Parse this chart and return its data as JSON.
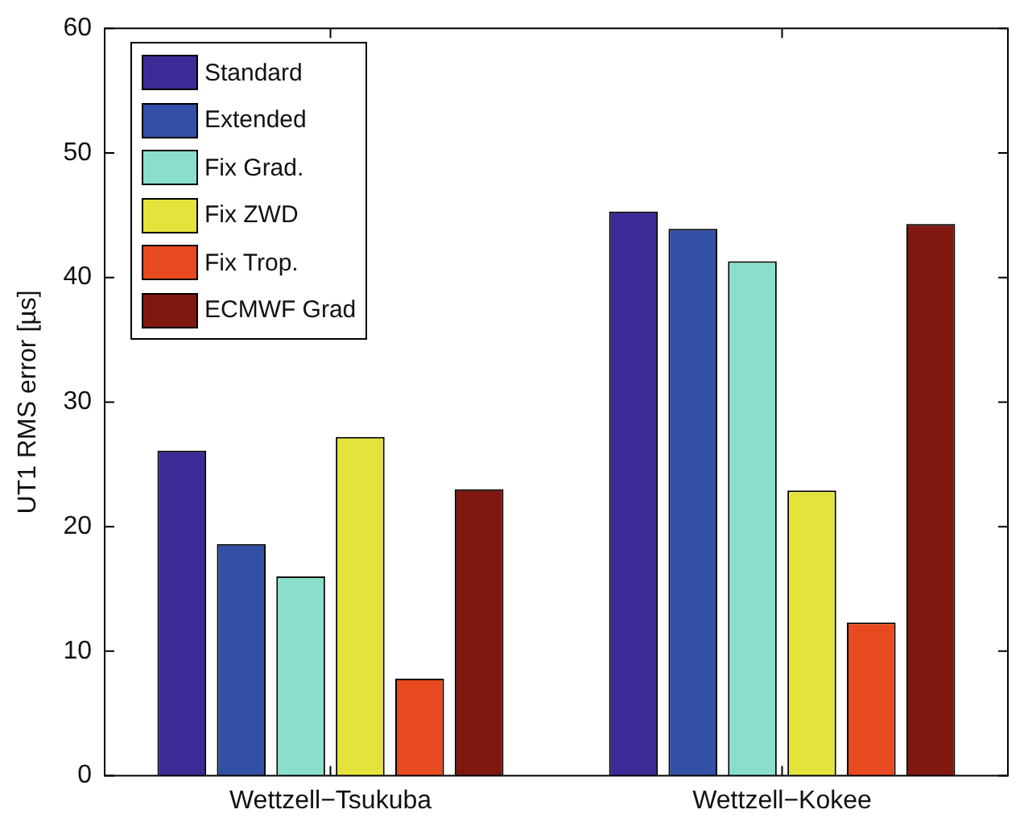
{
  "chart_data": {
    "type": "bar",
    "ylabel": "UT1 RMS error [µs]",
    "categories": [
      "Wettzell−Tsukuba",
      "Wettzell−Kokee"
    ],
    "series": [
      {
        "name": "Standard",
        "color": "#3c2a96",
        "values": [
          26.1,
          45.3
        ]
      },
      {
        "name": "Extended",
        "color": "#3150a6",
        "values": [
          18.6,
          43.9
        ]
      },
      {
        "name": "Fix Grad.",
        "color": "#8adfcc",
        "values": [
          16.0,
          41.3
        ]
      },
      {
        "name": "Fix ZWD",
        "color": "#e4e33c",
        "values": [
          27.2,
          22.9
        ]
      },
      {
        "name": "Fix Trop.",
        "color": "#e84a20",
        "values": [
          7.8,
          12.3
        ]
      },
      {
        "name": "ECMWF Grad",
        "color": "#801810",
        "values": [
          23.0,
          44.3
        ]
      }
    ],
    "ylim": [
      0,
      60
    ],
    "yticks": [
      0,
      10,
      20,
      30,
      40,
      50,
      60
    ],
    "grid": false,
    "legend": "top left"
  }
}
